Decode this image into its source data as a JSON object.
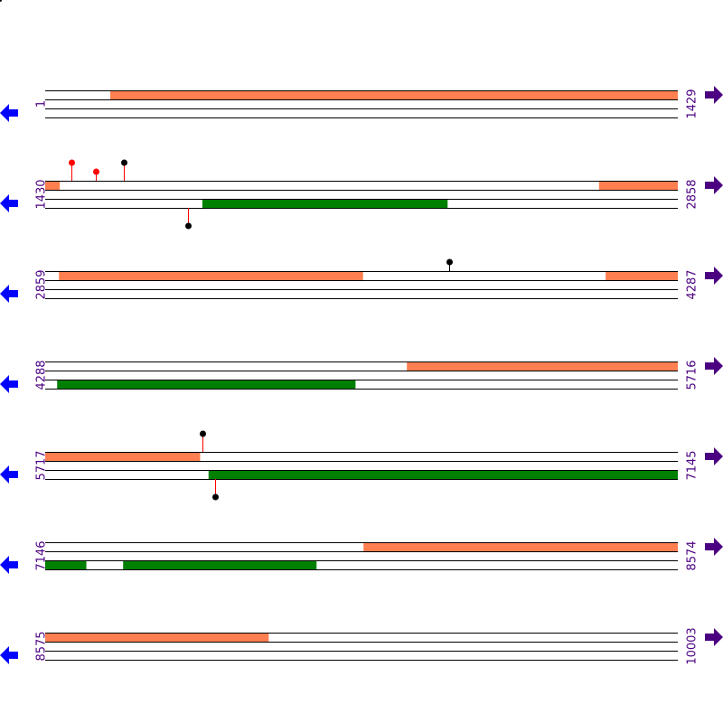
{
  "colors": {
    "forward_feature": "#ff7f50",
    "reverse_feature": "#008000",
    "left_arrow": "#0000ff",
    "right_arrow": "#4b0082",
    "label": "#4b0082",
    "marker_red": "#ff0000",
    "marker_black": "#000000"
  },
  "icons": {
    "left": "arrow-left-icon",
    "right": "arrow-right-icon"
  },
  "rows": [
    {
      "start": 1,
      "end": 1429,
      "start_label": "1",
      "end_label": "1429",
      "forward": [
        [
          148,
          1429
        ]
      ],
      "reverse": [],
      "markers": []
    },
    {
      "start": 1430,
      "end": 2858,
      "start_label": "1430",
      "end_label": "2858",
      "forward": [
        [
          1430,
          1462
        ],
        [
          2681,
          2858
        ]
      ],
      "reverse": [
        [
          1785,
          2338
        ]
      ],
      "markers": [
        {
          "pos": 1489,
          "strand": "forward",
          "head": "red"
        },
        {
          "pos": 1544,
          "strand": "forward",
          "head": "red"
        },
        {
          "pos": 1608,
          "strand": "forward",
          "head": "black"
        },
        {
          "pos": 1753,
          "strand": "reverse",
          "head": "black"
        }
      ]
    },
    {
      "start": 2859,
      "end": 4287,
      "start_label": "2859",
      "end_label": "4287",
      "forward": [
        [
          2890,
          3576
        ],
        [
          4125,
          4287
        ]
      ],
      "reverse": [],
      "markers": [
        {
          "pos": 3772,
          "strand": "forward",
          "head": "black"
        }
      ]
    },
    {
      "start": 4288,
      "end": 5716,
      "start_label": "4288",
      "end_label": "5716",
      "forward": [
        [
          5105,
          5716
        ]
      ],
      "reverse": [
        [
          4315,
          4988
        ]
      ],
      "markers": []
    },
    {
      "start": 5717,
      "end": 7145,
      "start_label": "5717",
      "end_label": "7145",
      "forward": [
        [
          5717,
          6066
        ]
      ],
      "reverse": [
        [
          6086,
          7145
        ]
      ],
      "markers": [
        {
          "pos": 6072,
          "strand": "forward",
          "head": "black"
        },
        {
          "pos": 6101,
          "strand": "reverse",
          "head": "black"
        }
      ]
    },
    {
      "start": 7146,
      "end": 8574,
      "start_label": "7146",
      "end_label": "8574",
      "forward": [
        [
          7865,
          8574
        ]
      ],
      "reverse": [
        [
          7146,
          7238
        ],
        [
          7322,
          7758
        ]
      ],
      "markers": []
    },
    {
      "start": 8575,
      "end": 10003,
      "start_label": "8575",
      "end_label": "10003",
      "forward": [
        [
          8575,
          9079
        ]
      ],
      "reverse": [],
      "markers": []
    }
  ]
}
